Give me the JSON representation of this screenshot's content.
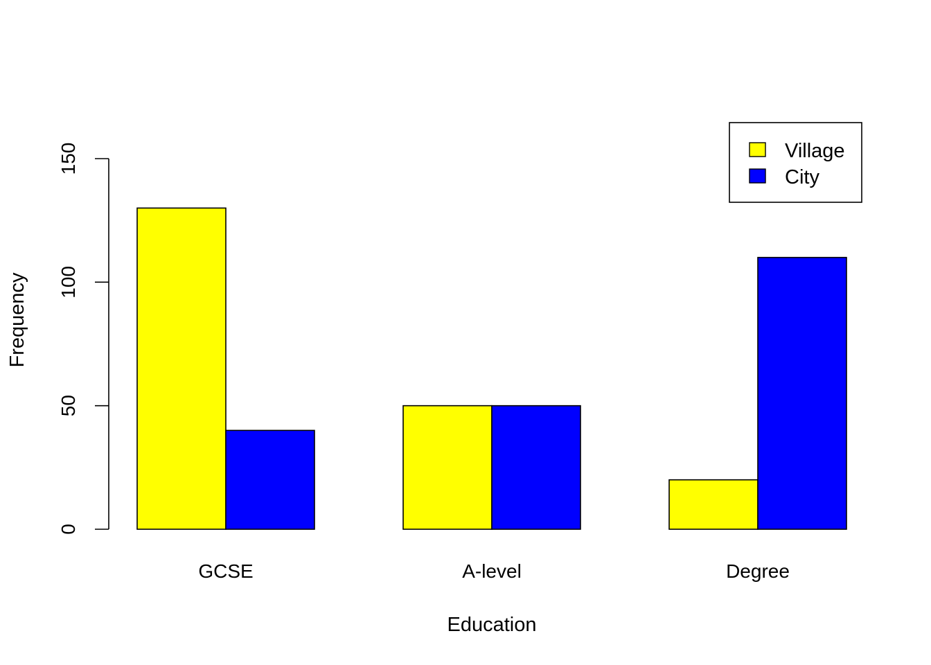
{
  "chart_data": {
    "type": "bar",
    "title": "",
    "xlabel": "Education",
    "ylabel": "Frequency",
    "categories": [
      "GCSE",
      "A-level",
      "Degree"
    ],
    "series": [
      {
        "name": "Village",
        "values": [
          130,
          50,
          20
        ],
        "color": "#ffff00"
      },
      {
        "name": "City",
        "values": [
          40,
          50,
          110
        ],
        "color": "#0000ff"
      }
    ],
    "ylim": [
      0,
      150
    ],
    "yticks": [
      0,
      50,
      100,
      150
    ],
    "ytick_labels": [
      "0",
      "50",
      "100",
      "150"
    ],
    "grid": false,
    "legend": {
      "position": "top-right",
      "entries": [
        "Village",
        "City"
      ]
    }
  }
}
